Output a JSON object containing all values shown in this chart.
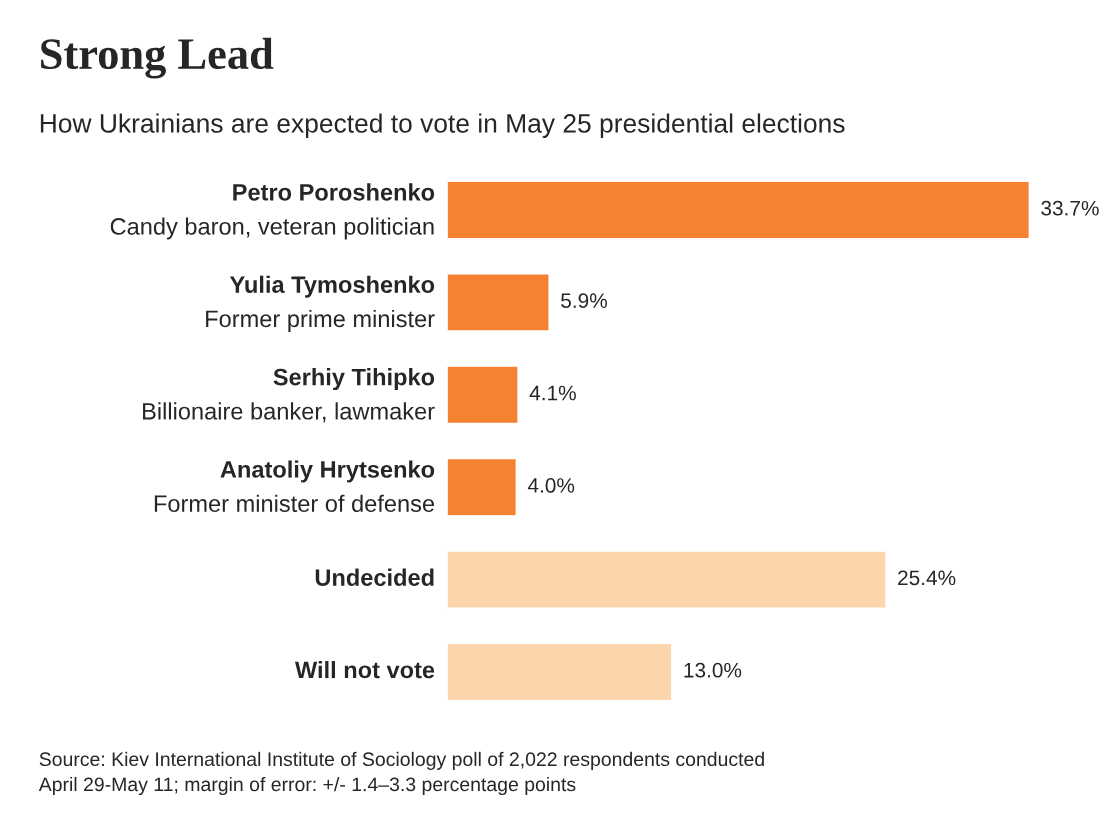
{
  "chart_data": {
    "type": "bar",
    "orientation": "horizontal",
    "title": "Strong Lead",
    "subtitle": "How Ukrainians are expected to vote in May 25 presidential elections",
    "categories": [
      "Petro Poroshenko\nCandy baron, veteran politician",
      "Yulia Tymoshenko\nFormer prime minister",
      "Serhiy Tihipko\nBillionaire banker, lawmaker",
      "Anatoliy Hrytsenko\nFormer minister of defense",
      "Undecided",
      "Will not vote"
    ],
    "values": [
      33.7,
      5.9,
      4.1,
      4.0,
      25.4,
      13.0
    ],
    "colors": [
      "#f58230",
      "#f58230",
      "#f58230",
      "#f58230",
      "#fdd5ad",
      "#fdd5ad"
    ],
    "value_labels": [
      "33.7%",
      "5.9%",
      "4.1%",
      "4.0%",
      "25.4%",
      "13.0%"
    ],
    "annotations": [
      "Source: Kiev International Institute of Sociology poll of 2,022 respondents conducted\nApril 29-May 11; margin of error: +/- 1.4–3.3 percentage points"
    ]
  }
}
